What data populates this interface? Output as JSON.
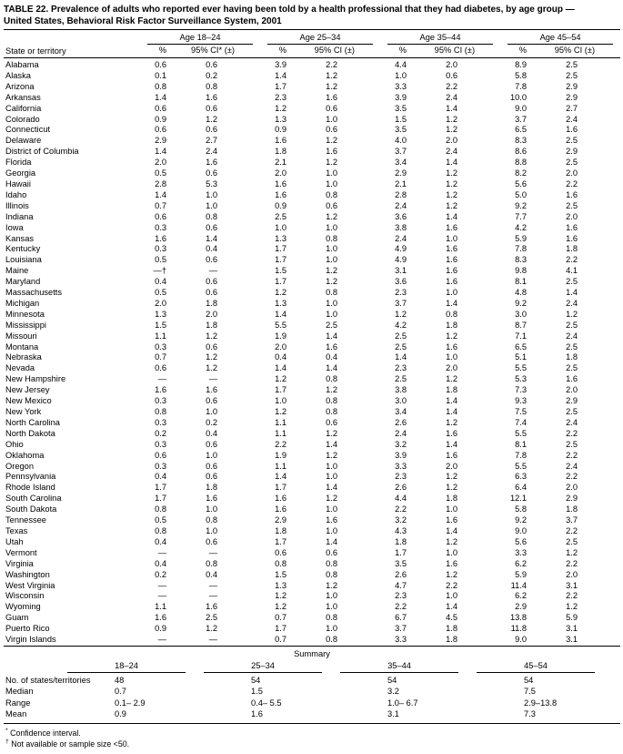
{
  "title_line1": "TABLE 22. Prevalence of adults who reported ever having been told by a health professional that they had diabetes, by age group —",
  "title_line2": "United States, Behavioral Risk Factor Surveillance System, 2001",
  "columns": {
    "state_header": "State or territory",
    "pct_label": "%",
    "age_groups": [
      "Age 18–24",
      "Age 25–34",
      "Age 35–44",
      "Age 45–54"
    ],
    "ci_labels": [
      "95% CI* (±)",
      "95% CI (±)",
      "95% CI (±)",
      "95% CI (±)"
    ]
  },
  "rows": [
    {
      "state": "Alabama",
      "values": [
        "0.6",
        "0.6",
        "3.9",
        "2.2",
        "4.4",
        "2.0",
        "8.9",
        "2.5"
      ]
    },
    {
      "state": "Alaska",
      "values": [
        "0.1",
        "0.2",
        "1.4",
        "1.2",
        "1.0",
        "0.6",
        "5.8",
        "2.5"
      ]
    },
    {
      "state": "Arizona",
      "values": [
        "0.8",
        "0.8",
        "1.7",
        "1.2",
        "3.3",
        "2.2",
        "7.8",
        "2.9"
      ]
    },
    {
      "state": "Arkansas",
      "values": [
        "1.4",
        "1.6",
        "2.3",
        "1.6",
        "3.9",
        "2.4",
        "10.0",
        "2.9"
      ]
    },
    {
      "state": "California",
      "values": [
        "0.6",
        "0.6",
        "1.2",
        "0.6",
        "3.5",
        "1.4",
        "9.0",
        "2.7"
      ]
    },
    {
      "state": "Colorado",
      "values": [
        "0.9",
        "1.2",
        "1.3",
        "1.0",
        "1.5",
        "1.2",
        "3.7",
        "2.4"
      ]
    },
    {
      "state": "Connecticut",
      "values": [
        "0.6",
        "0.6",
        "0.9",
        "0.6",
        "3.5",
        "1.2",
        "6.5",
        "1.6"
      ]
    },
    {
      "state": "Delaware",
      "values": [
        "2.9",
        "2.7",
        "1.6",
        "1.2",
        "4.0",
        "2.0",
        "8.3",
        "2.5"
      ]
    },
    {
      "state": "District of Columbia",
      "values": [
        "1.4",
        "2.4",
        "1.8",
        "1.6",
        "3.7",
        "2.4",
        "8.6",
        "2.9"
      ]
    },
    {
      "state": "Florida",
      "values": [
        "2.0",
        "1.6",
        "2.1",
        "1.2",
        "3.4",
        "1.4",
        "8.8",
        "2.5"
      ]
    },
    {
      "state": "Georgia",
      "values": [
        "0.5",
        "0.6",
        "2.0",
        "1.0",
        "2.9",
        "1.2",
        "8.2",
        "2.0"
      ]
    },
    {
      "state": "Hawaii",
      "values": [
        "2.8",
        "5.3",
        "1.6",
        "1.0",
        "2.1",
        "1.2",
        "5.6",
        "2.2"
      ]
    },
    {
      "state": "Idaho",
      "values": [
        "1.4",
        "1.0",
        "1.6",
        "0.8",
        "2.8",
        "1.2",
        "5.0",
        "1.6"
      ]
    },
    {
      "state": "Illinois",
      "values": [
        "0.7",
        "1.0",
        "0.9",
        "0.6",
        "2.4",
        "1.2",
        "9.2",
        "2.5"
      ]
    },
    {
      "state": "Indiana",
      "values": [
        "0.6",
        "0.8",
        "2.5",
        "1.2",
        "3.6",
        "1.4",
        "7.7",
        "2.0"
      ]
    },
    {
      "state": "Iowa",
      "values": [
        "0.3",
        "0.6",
        "1.0",
        "1.0",
        "3.8",
        "1.6",
        "4.2",
        "1.6"
      ]
    },
    {
      "state": "Kansas",
      "values": [
        "1.6",
        "1.4",
        "1.3",
        "0.8",
        "2.4",
        "1.0",
        "5.9",
        "1.6"
      ]
    },
    {
      "state": "Kentucky",
      "values": [
        "0.3",
        "0.4",
        "1.7",
        "1.0",
        "4.9",
        "1.6",
        "7.8",
        "1.8"
      ]
    },
    {
      "state": "Louisiana",
      "values": [
        "0.5",
        "0.6",
        "1.7",
        "1.0",
        "4.9",
        "1.6",
        "8.3",
        "2.2"
      ]
    },
    {
      "state": "Maine",
      "values": [
        "—†",
        "—",
        "1.5",
        "1.2",
        "3.1",
        "1.6",
        "9.8",
        "4.1"
      ]
    },
    {
      "state": "Maryland",
      "values": [
        "0.4",
        "0.6",
        "1.7",
        "1.2",
        "3.6",
        "1.6",
        "8.1",
        "2.5"
      ]
    },
    {
      "state": "Massachusetts",
      "values": [
        "0.5",
        "0.6",
        "1.2",
        "0.8",
        "2.3",
        "1.0",
        "4.8",
        "1.4"
      ]
    },
    {
      "state": "Michigan",
      "values": [
        "2.0",
        "1.8",
        "1.3",
        "1.0",
        "3.7",
        "1.4",
        "9.2",
        "2.4"
      ]
    },
    {
      "state": "Minnesota",
      "values": [
        "1.3",
        "2.0",
        "1.4",
        "1.0",
        "1.2",
        "0.8",
        "3.0",
        "1.2"
      ]
    },
    {
      "state": "Mississippi",
      "values": [
        "1.5",
        "1.8",
        "5.5",
        "2.5",
        "4.2",
        "1.8",
        "8.7",
        "2.5"
      ]
    },
    {
      "state": "Missouri",
      "values": [
        "1.1",
        "1.2",
        "1.9",
        "1.4",
        "2.5",
        "1.2",
        "7.1",
        "2.4"
      ]
    },
    {
      "state": "Montana",
      "values": [
        "0.3",
        "0.6",
        "2.0",
        "1.6",
        "2.5",
        "1.6",
        "6.5",
        "2.5"
      ]
    },
    {
      "state": "Nebraska",
      "values": [
        "0.7",
        "1.2",
        "0.4",
        "0.4",
        "1.4",
        "1.0",
        "5.1",
        "1.8"
      ]
    },
    {
      "state": "Nevada",
      "values": [
        "0.6",
        "1.2",
        "1.4",
        "1.4",
        "2.3",
        "2.0",
        "5.5",
        "2.5"
      ]
    },
    {
      "state": "New Hampshire",
      "values": [
        "—",
        "—",
        "1.2",
        "0.8",
        "2.5",
        "1.2",
        "5.3",
        "1.6"
      ]
    },
    {
      "state": "New Jersey",
      "values": [
        "1.6",
        "1.6",
        "1.7",
        "1.2",
        "3.8",
        "1.8",
        "7.3",
        "2.0"
      ]
    },
    {
      "state": "New Mexico",
      "values": [
        "0.3",
        "0.6",
        "1.0",
        "0.8",
        "3.0",
        "1.4",
        "9.3",
        "2.9"
      ]
    },
    {
      "state": "New York",
      "values": [
        "0.8",
        "1.0",
        "1.2",
        "0.8",
        "3.4",
        "1.4",
        "7.5",
        "2.5"
      ]
    },
    {
      "state": "North Carolina",
      "values": [
        "0.3",
        "0.2",
        "1.1",
        "0.6",
        "2.6",
        "1.2",
        "7.4",
        "2.4"
      ]
    },
    {
      "state": "North Dakota",
      "values": [
        "0.2",
        "0.4",
        "1.1",
        "1.2",
        "2.4",
        "1.6",
        "5.5",
        "2.2"
      ]
    },
    {
      "state": "Ohio",
      "values": [
        "0.3",
        "0.6",
        "2.2",
        "1.4",
        "3.2",
        "1.4",
        "8.1",
        "2.5"
      ]
    },
    {
      "state": "Oklahoma",
      "values": [
        "0.6",
        "1.0",
        "1.9",
        "1.2",
        "3.9",
        "1.6",
        "7.8",
        "2.2"
      ]
    },
    {
      "state": "Oregon",
      "values": [
        "0.3",
        "0.6",
        "1.1",
        "1.0",
        "3.3",
        "2.0",
        "5.5",
        "2.4"
      ]
    },
    {
      "state": "Pennsylvania",
      "values": [
        "0.4",
        "0.6",
        "1.4",
        "1.0",
        "2.3",
        "1.2",
        "6.3",
        "2.2"
      ]
    },
    {
      "state": "Rhode Island",
      "values": [
        "1.7",
        "1.8",
        "1.7",
        "1.4",
        "2.6",
        "1.2",
        "6.4",
        "2.0"
      ]
    },
    {
      "state": "South Carolina",
      "values": [
        "1.7",
        "1.6",
        "1.6",
        "1.2",
        "4.4",
        "1.8",
        "12.1",
        "2.9"
      ]
    },
    {
      "state": "South Dakota",
      "values": [
        "0.8",
        "1.0",
        "1.6",
        "1.0",
        "2.2",
        "1.0",
        "5.8",
        "1.8"
      ]
    },
    {
      "state": "Tennessee",
      "values": [
        "0.5",
        "0.8",
        "2.9",
        "1.6",
        "3.2",
        "1.6",
        "9.2",
        "3.7"
      ]
    },
    {
      "state": "Texas",
      "values": [
        "0.8",
        "1.0",
        "1.8",
        "1.0",
        "4.3",
        "1.4",
        "9.0",
        "2.2"
      ]
    },
    {
      "state": "Utah",
      "values": [
        "0.4",
        "0.6",
        "1.7",
        "1.4",
        "1.8",
        "1.2",
        "5.6",
        "2.5"
      ]
    },
    {
      "state": "Vermont",
      "values": [
        "—",
        "—",
        "0.6",
        "0.6",
        "1.7",
        "1.0",
        "3.3",
        "1.2"
      ]
    },
    {
      "state": "Virginia",
      "values": [
        "0.4",
        "0.8",
        "0.8",
        "0.8",
        "3.5",
        "1.6",
        "6.2",
        "2.2"
      ]
    },
    {
      "state": "Washington",
      "values": [
        "0.2",
        "0.4",
        "1.5",
        "0.8",
        "2.6",
        "1.2",
        "5.9",
        "2.0"
      ]
    },
    {
      "state": "West Virginia",
      "values": [
        "—",
        "—",
        "1.3",
        "1.2",
        "4.7",
        "2.2",
        "11.4",
        "3.1"
      ]
    },
    {
      "state": "Wisconsin",
      "values": [
        "—",
        "—",
        "1.2",
        "1.0",
        "2.3",
        "1.0",
        "6.2",
        "2.2"
      ]
    },
    {
      "state": "Wyoming",
      "values": [
        "1.1",
        "1.6",
        "1.2",
        "1.0",
        "2.2",
        "1.4",
        "2.9",
        "1.2"
      ]
    },
    {
      "state": "Guam",
      "values": [
        "1.6",
        "2.5",
        "0.7",
        "0.8",
        "6.7",
        "4.5",
        "13.8",
        "5.9"
      ]
    },
    {
      "state": "Puerto Rico",
      "values": [
        "0.9",
        "1.2",
        "1.7",
        "1.0",
        "3.7",
        "1.8",
        "11.8",
        "3.1"
      ]
    },
    {
      "state": "Virgin Islands",
      "values": [
        "—",
        "—",
        "0.7",
        "0.8",
        "3.3",
        "1.8",
        "9.0",
        "3.1"
      ]
    }
  ],
  "summary": {
    "heading": "Summary",
    "age_headers": [
      "18–24",
      "25–34",
      "35–44",
      "45–54"
    ],
    "rows": [
      {
        "label": "No. of states/territories",
        "values": [
          "48",
          "54",
          "54",
          "54"
        ]
      },
      {
        "label": "Median",
        "values": [
          "0.7",
          "1.5",
          "3.2",
          "7.5"
        ]
      },
      {
        "label": "Range",
        "values": [
          "0.1– 2.9",
          "0.4– 5.5",
          "1.0– 6.7",
          "2.9–13.8"
        ]
      },
      {
        "label": "Mean",
        "values": [
          "0.9",
          "1.6",
          "3.1",
          "7.3"
        ]
      }
    ]
  },
  "footnotes": [
    {
      "marker": "*",
      "text": " Confidence interval."
    },
    {
      "marker": "†",
      "text": " Not available or sample size <50."
    }
  ]
}
